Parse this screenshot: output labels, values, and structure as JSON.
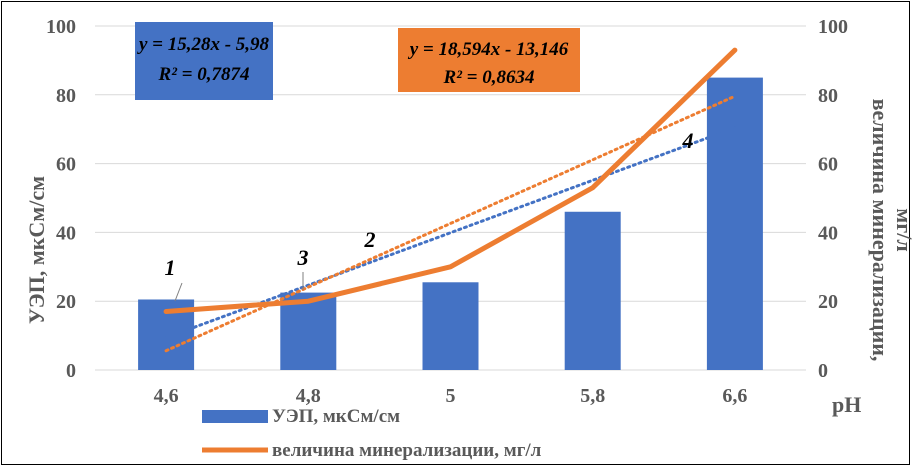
{
  "chart_data": {
    "type": "bar",
    "categories": [
      "4,6",
      "4,8",
      "5",
      "5,8",
      "6,6"
    ],
    "xlabel": "pH",
    "ylabel": "УЭП, мкСм/см",
    "y2label": "величина минерализации, мг/л",
    "ylim": [
      0,
      100
    ],
    "y2lim": [
      0,
      100
    ],
    "yticks": [
      "0",
      "20",
      "40",
      "60",
      "80",
      "100"
    ],
    "y2ticks": [
      "0",
      "20",
      "40",
      "60",
      "80",
      "100"
    ],
    "grid": true,
    "legend_position": "bottom",
    "series": [
      {
        "name": "УЭП, мкСм/см",
        "kind": "bar",
        "axis": "left",
        "color": "#4472C4",
        "values": [
          20.5,
          22.5,
          25.5,
          46,
          85
        ]
      },
      {
        "name": "величина минерализации, мг/л",
        "kind": "line",
        "axis": "right",
        "color": "#ED7D31",
        "values": [
          17,
          20,
          30,
          53,
          93
        ]
      }
    ],
    "trendlines": [
      {
        "series": 0,
        "equation": "y = 15,28x - 5,98",
        "r2": "R² = 0,7874",
        "color": "#4472C4"
      },
      {
        "series": 1,
        "equation": "y = 18,594x - 13,146",
        "r2": "R² = 0,8634",
        "color": "#ED7D31"
      }
    ],
    "point_labels": [
      "1",
      "3",
      "2",
      "4"
    ]
  }
}
